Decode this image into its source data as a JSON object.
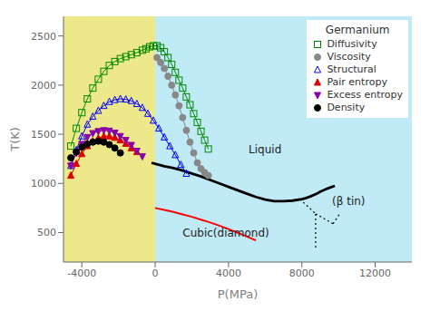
{
  "chart_data": {
    "type": "line",
    "xlabel": "P(MPa)",
    "ylabel": "T(K)",
    "xlim": [
      -5000,
      14000
    ],
    "ylim": [
      200,
      2700
    ],
    "xticks": [
      -4000,
      0,
      4000,
      8000,
      12000
    ],
    "yticks": [
      500,
      1000,
      1500,
      2000,
      2500
    ],
    "legend": "upper right",
    "legend_title": "Germanium",
    "regions": [
      {
        "from": -5000,
        "to": 0,
        "color": "#ede88a"
      },
      {
        "from": 0,
        "to": 14000,
        "color": "#c0eaf5"
      }
    ],
    "series": [
      {
        "color": "black",
        "x": [
          -200,
          0,
          500,
          1000,
          1500,
          2000,
          2500,
          3000,
          3500,
          4000,
          4500,
          5000,
          5500,
          6000,
          6500,
          7000,
          7500,
          8000,
          8200,
          8500,
          8800,
          9000,
          9300,
          9500,
          9800
        ],
        "values": [
          1210,
          1200,
          1175,
          1155,
          1130,
          1100,
          1070,
          1035,
          1000,
          965,
          930,
          895,
          862,
          835,
          820,
          820,
          825,
          840,
          850,
          870,
          895,
          915,
          940,
          955,
          975
        ]
      },
      {
        "color": "red",
        "x": [
          0,
          500,
          1000,
          1500,
          2000,
          2500,
          3000,
          3500,
          4000,
          4500,
          5000,
          5500
        ],
        "values": [
          750,
          730,
          710,
          685,
          660,
          632,
          602,
          570,
          535,
          498,
          460,
          420
        ]
      },
      {
        "color": "black",
        "line_style": "dotted",
        "x": [
          7900,
          8750
        ],
        "values": [
          840,
          690
        ]
      },
      {
        "color": "black",
        "line_style": "dotted",
        "x": [
          8750,
          8750
        ],
        "values": [
          690,
          320
        ]
      },
      {
        "color": "black",
        "line_style": "dotted",
        "x": [
          9700,
          8750
        ],
        "values": [
          590,
          690
        ]
      },
      {
        "color": "black",
        "line_style": "dotted",
        "x": [
          9700,
          10100
        ],
        "values": [
          590,
          700
        ]
      },
      {
        "name": "Diffusivity",
        "color": "#008800",
        "marker": "square-open",
        "x": [
          -4600,
          -4300,
          -4000,
          -3700,
          -3400,
          -3100,
          -2800,
          -2500,
          -2200,
          -1900,
          -1600,
          -1300,
          -1000,
          -700,
          -500,
          -300,
          -100,
          100,
          300,
          500,
          700,
          900,
          1100,
          1300,
          1500,
          1700,
          1900,
          2100,
          2300,
          2500,
          2700,
          2900
        ],
        "values": [
          1380,
          1560,
          1720,
          1860,
          1970,
          2060,
          2140,
          2200,
          2240,
          2270,
          2290,
          2310,
          2330,
          2355,
          2370,
          2390,
          2400,
          2400,
          2380,
          2340,
          2280,
          2210,
          2130,
          2050,
          1970,
          1880,
          1800,
          1710,
          1620,
          1530,
          1440,
          1350
        ]
      },
      {
        "name": "Viscosity",
        "color": "#888888",
        "marker": "circle",
        "x": [
          100,
          300,
          500,
          700,
          900,
          1100,
          1300,
          1500,
          1700,
          1900,
          2100,
          2300,
          2500,
          2700,
          2900
        ],
        "values": [
          2280,
          2230,
          2170,
          2090,
          2000,
          1900,
          1790,
          1670,
          1540,
          1420,
          1310,
          1210,
          1150,
          1110,
          1080
        ]
      },
      {
        "name": "Structural",
        "color": "#0000ff",
        "marker": "triangle-up-open",
        "x": [
          -4600,
          -4300,
          -4000,
          -3700,
          -3400,
          -3100,
          -2800,
          -2500,
          -2200,
          -1900,
          -1600,
          -1300,
          -1000,
          -700,
          -400,
          -100,
          200,
          500,
          800,
          1100,
          1400,
          1700
        ],
        "values": [
          1180,
          1340,
          1480,
          1600,
          1680,
          1740,
          1790,
          1830,
          1850,
          1860,
          1855,
          1840,
          1810,
          1770,
          1710,
          1640,
          1560,
          1470,
          1380,
          1290,
          1190,
          1100
        ]
      },
      {
        "name": "Pair entropy",
        "color": "#dd0000",
        "marker": "triangle-up",
        "x": [
          -4600,
          -4300,
          -4000,
          -3700,
          -3400,
          -3100,
          -2800,
          -2500,
          -2200,
          -1900,
          -1600,
          -1300,
          -1000
        ],
        "values": [
          1080,
          1200,
          1300,
          1380,
          1430,
          1460,
          1480,
          1480,
          1465,
          1440,
          1405,
          1360,
          1320
        ]
      },
      {
        "name": "Excess entropy",
        "color": "#8800aa",
        "marker": "triangle-down",
        "x": [
          -4600,
          -4300,
          -4000,
          -3700,
          -3400,
          -3100,
          -2800,
          -2500,
          -2200,
          -1900,
          -1600,
          -1300,
          -1000,
          -700
        ],
        "values": [
          1180,
          1310,
          1400,
          1470,
          1510,
          1530,
          1540,
          1535,
          1515,
          1480,
          1440,
          1390,
          1330,
          1275
        ]
      },
      {
        "name": "Density",
        "color": "#000000",
        "marker": "circle",
        "x": [
          -4600,
          -4300,
          -4000,
          -3700,
          -3400,
          -3100,
          -2800,
          -2500,
          -2200,
          -1900
        ],
        "values": [
          1260,
          1320,
          1370,
          1400,
          1420,
          1430,
          1420,
          1395,
          1360,
          1310
        ]
      }
    ],
    "annotations": [
      {
        "text": "Liquid",
        "x": 4800,
        "y": 1350
      },
      {
        "text": "Cubic(diamond)",
        "x": 1200,
        "y": 500
      },
      {
        "text": "(β tin)",
        "x": 9350,
        "y": 820
      }
    ]
  }
}
